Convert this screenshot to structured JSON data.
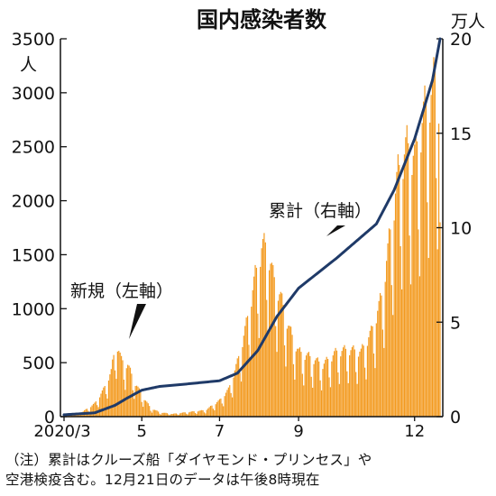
{
  "chart_data": {
    "type": "bar+line",
    "title": "国内感染者数",
    "left_axis": {
      "unit_label": "人",
      "range": [
        0,
        3500
      ],
      "ticks": [
        0,
        500,
        1000,
        1500,
        2000,
        2500,
        3000,
        3500
      ]
    },
    "right_axis": {
      "unit_label": "万人",
      "range": [
        0,
        20
      ],
      "ticks": [
        0,
        5,
        10,
        15,
        20
      ]
    },
    "x_axis": {
      "start_date": "2020-03-01",
      "end_date": "2020-12-21",
      "tick_labels": [
        {
          "label": "2020/3",
          "date": "2020-03-01"
        },
        {
          "label": "5",
          "date": "2020-05-01"
        },
        {
          "label": "7",
          "date": "2020-07-01"
        },
        {
          "label": "9",
          "date": "2020-09-01"
        },
        {
          "label": "12",
          "date": "2020-12-01"
        }
      ]
    },
    "series": [
      {
        "name": "新規",
        "axis": "left",
        "kind": "bar",
        "color": "#F39A1F",
        "points": [
          [
            "2020-03-01",
            20
          ],
          [
            "2020-03-15",
            40
          ],
          [
            "2020-03-25",
            120
          ],
          [
            "2020-04-01",
            250
          ],
          [
            "2020-04-07",
            420
          ],
          [
            "2020-04-11",
            700
          ],
          [
            "2020-04-15",
            520
          ],
          [
            "2020-04-20",
            480
          ],
          [
            "2020-04-25",
            330
          ],
          [
            "2020-05-01",
            200
          ],
          [
            "2020-05-08",
            80
          ],
          [
            "2020-05-15",
            40
          ],
          [
            "2020-05-25",
            25
          ],
          [
            "2020-06-05",
            40
          ],
          [
            "2020-06-20",
            60
          ],
          [
            "2020-07-01",
            150
          ],
          [
            "2020-07-08",
            250
          ],
          [
            "2020-07-15",
            500
          ],
          [
            "2020-07-22",
            850
          ],
          [
            "2020-07-29",
            1300
          ],
          [
            "2020-08-03",
            1560
          ],
          [
            "2020-08-07",
            1590
          ],
          [
            "2020-08-12",
            1300
          ],
          [
            "2020-08-18",
            1100
          ],
          [
            "2020-08-25",
            800
          ],
          [
            "2020-09-01",
            600
          ],
          [
            "2020-09-10",
            550
          ],
          [
            "2020-09-20",
            480
          ],
          [
            "2020-10-01",
            600
          ],
          [
            "2020-10-10",
            620
          ],
          [
            "2020-10-20",
            600
          ],
          [
            "2020-10-28",
            780
          ],
          [
            "2020-11-05",
            1100
          ],
          [
            "2020-11-12",
            1700
          ],
          [
            "2020-11-18",
            2250
          ],
          [
            "2020-11-25",
            2500
          ],
          [
            "2020-12-01",
            2400
          ],
          [
            "2020-12-05",
            2600
          ],
          [
            "2020-12-10",
            2900
          ],
          [
            "2020-12-15",
            3000
          ],
          [
            "2020-12-18",
            3250
          ],
          [
            "2020-12-20",
            2950
          ],
          [
            "2020-12-21",
            1800
          ]
        ]
      },
      {
        "name": "累計",
        "axis": "right",
        "kind": "line",
        "unit": "万人",
        "color": "#1F3A68",
        "points": [
          [
            "2020-03-01",
            0.1
          ],
          [
            "2020-03-25",
            0.2
          ],
          [
            "2020-04-10",
            0.6
          ],
          [
            "2020-04-20",
            1.0
          ],
          [
            "2020-05-01",
            1.4
          ],
          [
            "2020-05-15",
            1.6
          ],
          [
            "2020-06-01",
            1.7
          ],
          [
            "2020-07-01",
            1.9
          ],
          [
            "2020-07-15",
            2.3
          ],
          [
            "2020-07-31",
            3.5
          ],
          [
            "2020-08-15",
            5.3
          ],
          [
            "2020-09-01",
            6.8
          ],
          [
            "2020-10-01",
            8.4
          ],
          [
            "2020-11-01",
            10.2
          ],
          [
            "2020-11-15",
            12.0
          ],
          [
            "2020-12-01",
            14.7
          ],
          [
            "2020-12-15",
            17.8
          ],
          [
            "2020-12-21",
            20.0
          ]
        ]
      }
    ],
    "annotations": {
      "cumulative": "累計（右軸）",
      "daily": "新規（左軸）"
    }
  },
  "notes": {
    "line1": "（注）累計はクルーズ船「ダイヤモンド・プリンセス」や",
    "line2": "空港検疫含む。12月21日のデータは午後8時現在"
  }
}
